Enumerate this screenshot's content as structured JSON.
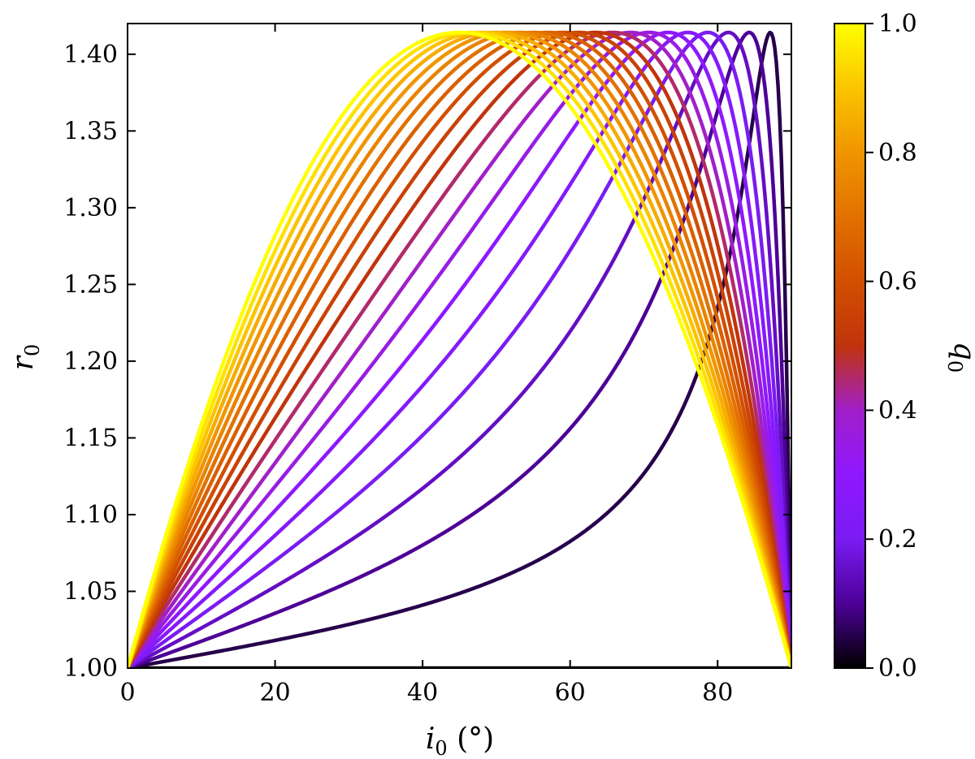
{
  "chart_data": {
    "type": "line",
    "xlabel": "i",
    "xlabel_sub": "0",
    "xlabel_unit": " (°)",
    "ylabel": "r",
    "ylabel_sub": "0",
    "colorbar_label": "q",
    "colorbar_label_sub": "0",
    "xlim": [
      0,
      90
    ],
    "ylim": [
      1.0,
      1.42
    ],
    "x_ticks": [
      0,
      20,
      40,
      60,
      80
    ],
    "x_tick_labels": [
      "0",
      "20",
      "40",
      "60",
      "80"
    ],
    "y_ticks": [
      1.0,
      1.05,
      1.1,
      1.15,
      1.2,
      1.25,
      1.3,
      1.35,
      1.4
    ],
    "y_tick_labels": [
      "1.00",
      "1.05",
      "1.10",
      "1.15",
      "1.20",
      "1.25",
      "1.30",
      "1.35",
      "1.40"
    ],
    "colorbar_range": [
      0,
      1
    ],
    "colorbar_ticks": [
      0,
      0.2,
      0.4,
      0.6,
      0.8,
      1.0
    ],
    "colorbar_tick_labels": [
      "0.0",
      "0.2",
      "0.4",
      "0.6",
      "0.8",
      "1.0"
    ],
    "colormap": "gnuplot",
    "grid": false,
    "series_q0": [
      0,
      0.05,
      0.1,
      0.15,
      0.2,
      0.25,
      0.3,
      0.35,
      0.4,
      0.45,
      0.5,
      0.55,
      0.6,
      0.65,
      0.7,
      0.75,
      0.8,
      0.85,
      0.9,
      0.95,
      1.0
    ],
    "peak_value": 1.414,
    "series_note_x": "curves peak at 45° for q0=1 and shift toward 90° as q0 decreases"
  }
}
